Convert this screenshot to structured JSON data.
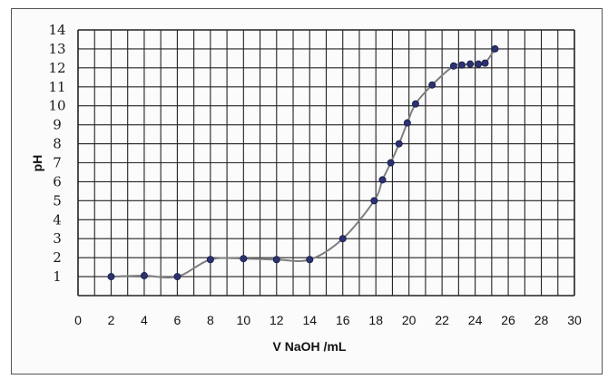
{
  "chart_data": {
    "type": "line",
    "title": "",
    "xlabel": "V NaOH /mL",
    "ylabel": "pH",
    "xlim": [
      0,
      30
    ],
    "ylim": [
      0,
      14
    ],
    "x_ticks": [
      "0",
      "2",
      "4",
      "6",
      "8",
      "10",
      "12",
      "14",
      "16",
      "18",
      "20",
      "22",
      "24",
      "26",
      "28",
      "30"
    ],
    "y_ticks": [
      "1",
      "2",
      "3",
      "4",
      "5",
      "6",
      "7",
      "8",
      "9",
      "10",
      "11",
      "12",
      "13",
      "14"
    ],
    "grid": true,
    "grid_step": {
      "x": 1,
      "y": 1
    },
    "line_color": "#7f7f7f",
    "point_color": "#2c3270",
    "series": [
      {
        "points": [
          {
            "x": 2,
            "y": 1.0
          },
          {
            "x": 4,
            "y": 1.05
          },
          {
            "x": 6,
            "y": 1.0
          },
          {
            "x": 8,
            "y": 1.9
          },
          {
            "x": 10,
            "y": 1.95
          },
          {
            "x": 12,
            "y": 1.9
          },
          {
            "x": 14,
            "y": 1.9
          },
          {
            "x": 16,
            "y": 3.0
          },
          {
            "x": 17.9,
            "y": 5.0
          },
          {
            "x": 18.4,
            "y": 6.1
          },
          {
            "x": 18.9,
            "y": 7.0
          },
          {
            "x": 19.4,
            "y": 8.0
          },
          {
            "x": 19.9,
            "y": 9.1
          },
          {
            "x": 20.4,
            "y": 10.1
          },
          {
            "x": 21.4,
            "y": 11.1
          },
          {
            "x": 22.7,
            "y": 12.1
          },
          {
            "x": 23.2,
            "y": 12.15
          },
          {
            "x": 23.7,
            "y": 12.2
          },
          {
            "x": 24.2,
            "y": 12.2
          },
          {
            "x": 24.6,
            "y": 12.25
          },
          {
            "x": 25.2,
            "y": 13.0
          }
        ]
      }
    ]
  }
}
